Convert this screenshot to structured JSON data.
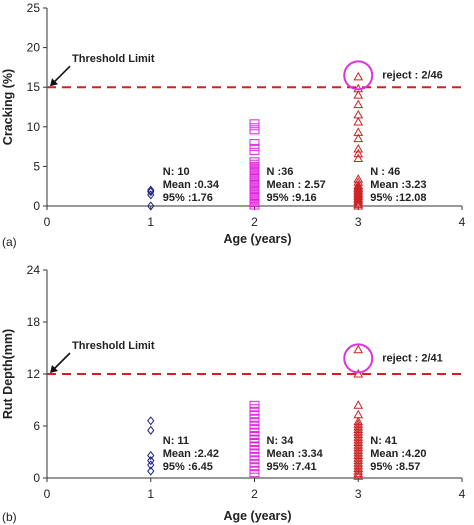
{
  "chart_data": [
    {
      "type": "scatter",
      "panel_label": "(a)",
      "xlabel": "Age (years)",
      "ylabel": "Cracking (%)",
      "xlim": [
        0,
        4
      ],
      "ylim": [
        0,
        25
      ],
      "x_ticks": [
        0,
        1,
        2,
        3,
        4
      ],
      "y_ticks": [
        0,
        5,
        10,
        15,
        20,
        25
      ],
      "grid": false,
      "threshold": {
        "value": 15,
        "label": "Threshold Limit"
      },
      "reject": {
        "x": 3,
        "y": 16.5,
        "label": "reject : 2/46"
      },
      "series": [
        {
          "x": 1,
          "color": "#1a237e",
          "marker": "diamond",
          "values": [
            0,
            1.4,
            1.8,
            2.0
          ]
        },
        {
          "x": 2,
          "color": "#e020e0",
          "marker": "square",
          "values": [
            0,
            0.3,
            0.6,
            0.9,
            1.2,
            1.5,
            1.8,
            2.1,
            2.4,
            2.7,
            3.0,
            3.3,
            3.6,
            3.9,
            4.2,
            4.5,
            4.8,
            5.1,
            5.4,
            5.7,
            6.9,
            7.4,
            8.0,
            9.5,
            10.0,
            10.5
          ]
        },
        {
          "x": 3,
          "color": "#cc2222",
          "marker": "triangle",
          "values": [
            0,
            0.2,
            0.4,
            0.6,
            0.8,
            1.0,
            1.2,
            1.4,
            1.6,
            1.8,
            2.0,
            2.2,
            2.4,
            2.6,
            3.0,
            3.4,
            6.0,
            6.6,
            7.2,
            8.5,
            9.3,
            10.6,
            11.5,
            12.8,
            14.0,
            14.8,
            16.3
          ]
        }
      ],
      "annotations": [
        {
          "x": 1,
          "lines": [
            "N: 10",
            "Mean :0.34",
            "95% :1.76"
          ]
        },
        {
          "x": 2,
          "lines": [
            "N :36",
            "Mean : 2.57",
            "95% :9.16"
          ]
        },
        {
          "x": 3,
          "lines": [
            "N : 46",
            "Mean :3.23",
            "95% :12.08"
          ]
        }
      ]
    },
    {
      "type": "scatter",
      "panel_label": "(b)",
      "xlabel": "Age (years)",
      "ylabel": "Rut Depth(mm)",
      "xlim": [
        0,
        4
      ],
      "ylim": [
        0,
        24
      ],
      "x_ticks": [
        0,
        1,
        2,
        3,
        4
      ],
      "y_ticks": [
        0,
        6,
        12,
        18,
        24
      ],
      "grid": false,
      "threshold": {
        "value": 12,
        "label": "Threshold Limit"
      },
      "reject": {
        "x": 3,
        "y": 13.8,
        "label": "reject : 2/41"
      },
      "series": [
        {
          "x": 1,
          "color": "#1a237e",
          "marker": "diamond",
          "values": [
            0.8,
            1.5,
            2.0,
            2.6,
            5.5,
            6.6
          ]
        },
        {
          "x": 2,
          "color": "#e020e0",
          "marker": "square",
          "values": [
            0.5,
            0.9,
            1.3,
            1.7,
            2.1,
            2.5,
            2.9,
            3.3,
            3.7,
            4.1,
            4.5,
            4.9,
            5.3,
            5.7,
            6.1,
            6.5,
            6.9,
            7.3,
            7.7,
            8.1,
            8.5
          ]
        },
        {
          "x": 3,
          "color": "#cc2222",
          "marker": "triangle",
          "values": [
            0.2,
            0.5,
            0.8,
            1.1,
            1.4,
            1.7,
            2.0,
            2.3,
            2.6,
            2.9,
            3.2,
            3.5,
            3.8,
            4.1,
            4.4,
            4.7,
            5.0,
            5.3,
            5.6,
            5.9,
            6.2,
            6.5,
            7.3,
            8.4,
            12.0,
            14.8
          ]
        }
      ],
      "annotations": [
        {
          "x": 1,
          "lines": [
            "N: 11",
            "Mean :2.42",
            "95% :6.45"
          ]
        },
        {
          "x": 2,
          "lines": [
            "N: 34",
            "Mean :3.34",
            "95% :7.41"
          ]
        },
        {
          "x": 3,
          "lines": [
            "N: 41",
            "Mean :4.20",
            "95% :8.57"
          ]
        }
      ]
    }
  ]
}
